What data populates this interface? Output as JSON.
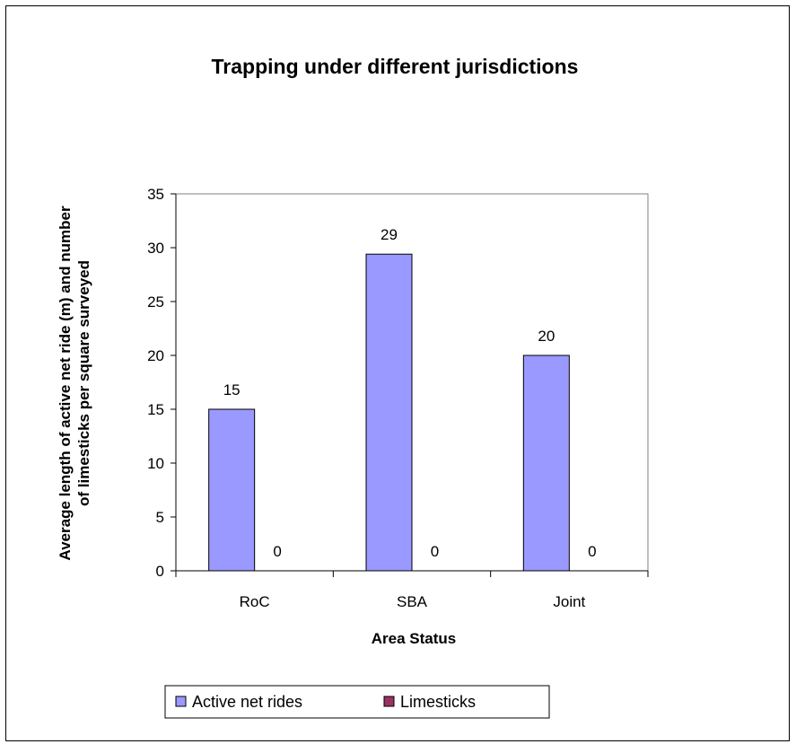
{
  "chart_data": {
    "type": "bar",
    "title": "Trapping under different jurisdictions",
    "xlabel": "Area Status",
    "ylabel": [
      "Average length of active net ride (m) and number",
      "of limesticks per square surveyed"
    ],
    "categories": [
      "RoC",
      "SBA",
      "Joint"
    ],
    "series": [
      {
        "name": "Active net rides",
        "values": [
          15,
          29.4,
          20
        ],
        "labels": [
          "15",
          "29",
          "20"
        ],
        "color": "#9999ff"
      },
      {
        "name": "Limesticks",
        "values": [
          0,
          0,
          0
        ],
        "labels": [
          "0",
          "0",
          "0"
        ],
        "color": "#993366"
      }
    ],
    "ylim": [
      0,
      35
    ],
    "yticks": [
      0,
      5,
      10,
      15,
      20,
      25,
      30,
      35
    ],
    "grid": false,
    "legend": "bottom"
  }
}
